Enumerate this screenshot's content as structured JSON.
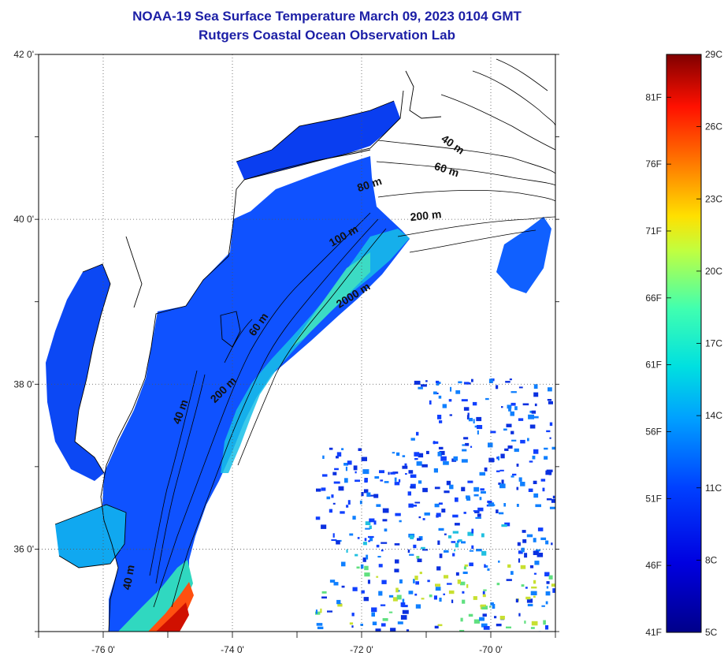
{
  "title": "NOAA-19 Sea Surface Temperature March 09, 2023 0104 GMT",
  "subtitle": "Rutgers Coastal Ocean Observation Lab",
  "map": {
    "lon_range": [
      -77.0,
      -69.0
    ],
    "lat_range": [
      35.0,
      42.0
    ],
    "lon_ticks": [
      {
        "value": -76,
        "label": "-76 0'"
      },
      {
        "value": -74,
        "label": "-74 0'"
      },
      {
        "value": -72,
        "label": "-72 0'"
      },
      {
        "value": -70,
        "label": "-70 0'"
      }
    ],
    "lat_ticks": [
      {
        "value": 42,
        "label": "42 0'"
      },
      {
        "value": 40,
        "label": "40 0'"
      },
      {
        "value": 38,
        "label": "38 0'"
      },
      {
        "value": 36,
        "label": "36 0'"
      }
    ],
    "grid": true,
    "colors": {
      "land": "#ffffff",
      "cold": "#0a2ee0",
      "water": "#0f52ff",
      "warm": "#18c8d8",
      "hot": "#e83010"
    }
  },
  "contour_labels": [
    {
      "text": "40 m",
      "lon": -70.62,
      "lat": 40.87,
      "rot": 35
    },
    {
      "text": "60 m",
      "lon": -70.7,
      "lat": 40.56,
      "rot": 18
    },
    {
      "text": "80 m",
      "lon": -71.86,
      "lat": 40.38,
      "rot": -18
    },
    {
      "text": "200 m",
      "lon": -71.0,
      "lat": 40.0,
      "rot": -6
    },
    {
      "text": "100 m",
      "lon": -72.25,
      "lat": 39.76,
      "rot": -30
    },
    {
      "text": "2000 m",
      "lon": -72.1,
      "lat": 39.04,
      "rot": -32
    },
    {
      "text": "60 m",
      "lon": -73.55,
      "lat": 38.7,
      "rot": -55
    },
    {
      "text": "200 m",
      "lon": -74.1,
      "lat": 37.9,
      "rot": -45
    },
    {
      "text": "40 m",
      "lon": -74.75,
      "lat": 37.65,
      "rot": -70
    },
    {
      "text": "40 m",
      "lon": -75.55,
      "lat": 35.65,
      "rot": -80
    }
  ],
  "colorbar": {
    "fahrenheit": [
      "81F",
      "76F",
      "71F",
      "66F",
      "61F",
      "56F",
      "51F",
      "46F",
      "41F"
    ],
    "celsius": [
      "29C",
      "26C",
      "23C",
      "20C",
      "17C",
      "14C",
      "11C",
      "8C",
      "5C"
    ]
  }
}
